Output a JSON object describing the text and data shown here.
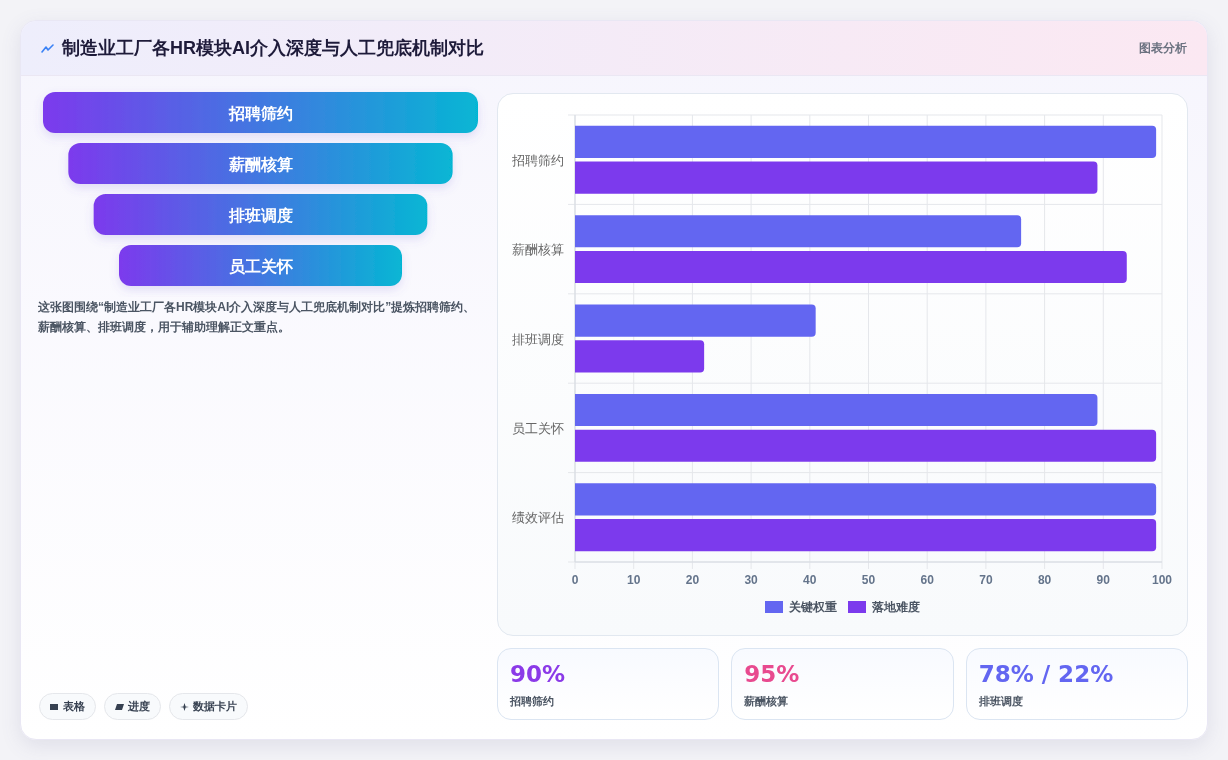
{
  "chart_data": [
    {
      "type": "other",
      "title": "制造业工厂各HR模块AI介入深度与人工兜底机制对比",
      "categories": [
        "招聘筛约",
        "薪酬核算",
        "排班调度",
        "员工关怀"
      ],
      "annotations": [
        "图表分析",
        "这张图围绕“制造业工厂各HR模块AI介入深度与人工兜底机制对比”提炼招聘筛约、薪酬核算、排班调度，用于辅助理解正文重点。",
        "表格",
        "进度",
        "数据卡片"
      ]
    },
    {
      "type": "bar",
      "orientation": "horizontal",
      "categories": [
        "招聘筛约",
        "薪酬核算",
        "排班调度",
        "员工关怀",
        "绩效评估"
      ],
      "series": [
        {
          "name": "关键权重",
          "color": "#6366f1",
          "values": [
            99,
            76,
            41,
            89,
            99
          ]
        },
        {
          "name": "落地难度",
          "color": "#7c3aed",
          "values": [
            89,
            94,
            22,
            99,
            99
          ]
        }
      ],
      "xlim": [
        0,
        100
      ],
      "xticks": [
        0,
        10,
        20,
        30,
        40,
        50,
        60,
        70,
        80,
        90,
        100
      ],
      "grid": true,
      "legend": "bottom"
    },
    {
      "type": "other",
      "categories": [
        "招聘筛约",
        "薪酬核算",
        "排班调度"
      ],
      "value_labels": [
        "90%",
        "95%",
        "78% / 22%"
      ]
    }
  ]
}
